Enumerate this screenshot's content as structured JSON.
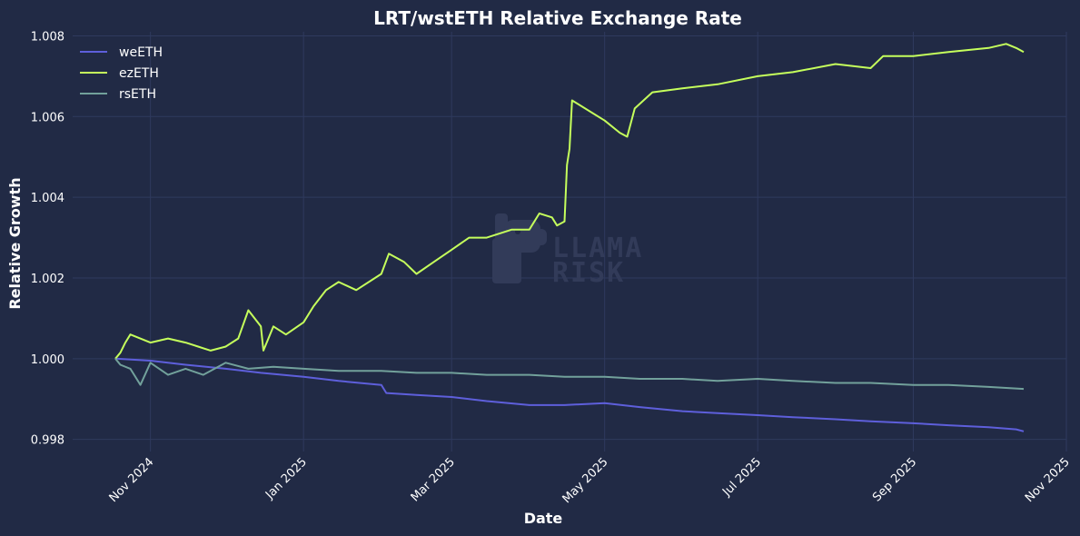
{
  "chart_data": {
    "type": "line",
    "title": "LRT/wstETH Relative Exchange Rate",
    "xlabel": "Date",
    "ylabel": "Relative Growth",
    "xlim": [
      "2024-10-01",
      "2025-11-01"
    ],
    "ylim": [
      0.9977,
      1.0081
    ],
    "x_ticks": [
      {
        "date": "2024-11-01",
        "label": "Nov 2024"
      },
      {
        "date": "2025-01-01",
        "label": "Jan 2025"
      },
      {
        "date": "2025-03-01",
        "label": "Mar 2025"
      },
      {
        "date": "2025-05-01",
        "label": "May 2025"
      },
      {
        "date": "2025-07-01",
        "label": "Jul 2025"
      },
      {
        "date": "2025-09-01",
        "label": "Sep 2025"
      },
      {
        "date": "2025-11-01",
        "label": "Nov 2025"
      }
    ],
    "y_ticks": [
      {
        "value": 0.998,
        "label": "0.998"
      },
      {
        "value": 1.0,
        "label": "1.000"
      },
      {
        "value": 1.002,
        "label": "1.002"
      },
      {
        "value": 1.004,
        "label": "1.004"
      },
      {
        "value": 1.006,
        "label": "1.006"
      },
      {
        "value": 1.008,
        "label": "1.008"
      }
    ],
    "grid": true,
    "legend_position": "top-left",
    "series": [
      {
        "name": "weETH",
        "color": "#5e5fdb",
        "points": [
          [
            "2024-10-18",
            1.0
          ],
          [
            "2024-11-01",
            0.99995
          ],
          [
            "2024-11-15",
            0.99985
          ],
          [
            "2024-12-01",
            0.99975
          ],
          [
            "2024-12-15",
            0.99965
          ],
          [
            "2025-01-01",
            0.99955
          ],
          [
            "2025-01-15",
            0.99945
          ],
          [
            "2025-02-01",
            0.99935
          ],
          [
            "2025-02-03",
            0.99915
          ],
          [
            "2025-02-15",
            0.9991
          ],
          [
            "2025-03-01",
            0.99905
          ],
          [
            "2025-03-15",
            0.99895
          ],
          [
            "2025-04-01",
            0.99885
          ],
          [
            "2025-04-15",
            0.99885
          ],
          [
            "2025-05-01",
            0.9989
          ],
          [
            "2025-05-15",
            0.9988
          ],
          [
            "2025-06-01",
            0.9987
          ],
          [
            "2025-06-15",
            0.99865
          ],
          [
            "2025-07-01",
            0.9986
          ],
          [
            "2025-07-15",
            0.99855
          ],
          [
            "2025-08-01",
            0.9985
          ],
          [
            "2025-08-15",
            0.99845
          ],
          [
            "2025-09-01",
            0.9984
          ],
          [
            "2025-09-15",
            0.99835
          ],
          [
            "2025-10-01",
            0.9983
          ],
          [
            "2025-10-12",
            0.99825
          ],
          [
            "2025-10-15",
            0.9982
          ]
        ]
      },
      {
        "name": "ezETH",
        "color": "#c5ff5c",
        "points": [
          [
            "2024-10-18",
            1.0
          ],
          [
            "2024-10-20",
            1.00015
          ],
          [
            "2024-10-22",
            1.0004
          ],
          [
            "2024-10-24",
            1.0006
          ],
          [
            "2024-11-01",
            1.0004
          ],
          [
            "2024-11-08",
            1.0005
          ],
          [
            "2024-11-15",
            1.0004
          ],
          [
            "2024-11-20",
            1.0003
          ],
          [
            "2024-11-25",
            1.0002
          ],
          [
            "2024-12-01",
            1.0003
          ],
          [
            "2024-12-06",
            1.0005
          ],
          [
            "2024-12-10",
            1.0012
          ],
          [
            "2024-12-15",
            1.0008
          ],
          [
            "2024-12-16",
            1.0002
          ],
          [
            "2024-12-20",
            1.0008
          ],
          [
            "2024-12-25",
            1.0006
          ],
          [
            "2025-01-01",
            1.0009
          ],
          [
            "2025-01-05",
            1.0013
          ],
          [
            "2025-01-10",
            1.0017
          ],
          [
            "2025-01-15",
            1.0019
          ],
          [
            "2025-01-22",
            1.0017
          ],
          [
            "2025-02-01",
            1.0021
          ],
          [
            "2025-02-04",
            1.0026
          ],
          [
            "2025-02-10",
            1.0024
          ],
          [
            "2025-02-15",
            1.0021
          ],
          [
            "2025-02-22",
            1.0024
          ],
          [
            "2025-03-01",
            1.0027
          ],
          [
            "2025-03-08",
            1.003
          ],
          [
            "2025-03-15",
            1.003
          ],
          [
            "2025-03-25",
            1.0032
          ],
          [
            "2025-04-01",
            1.0032
          ],
          [
            "2025-04-05",
            1.0036
          ],
          [
            "2025-04-10",
            1.0035
          ],
          [
            "2025-04-12",
            1.0033
          ],
          [
            "2025-04-15",
            1.0034
          ],
          [
            "2025-04-16",
            1.0048
          ],
          [
            "2025-04-17",
            1.0052
          ],
          [
            "2025-04-18",
            1.0064
          ],
          [
            "2025-05-01",
            1.0059
          ],
          [
            "2025-05-07",
            1.0056
          ],
          [
            "2025-05-10",
            1.0055
          ],
          [
            "2025-05-13",
            1.0062
          ],
          [
            "2025-05-20",
            1.0066
          ],
          [
            "2025-06-01",
            1.0067
          ],
          [
            "2025-06-15",
            1.0068
          ],
          [
            "2025-07-01",
            1.007
          ],
          [
            "2025-07-15",
            1.0071
          ],
          [
            "2025-08-01",
            1.0073
          ],
          [
            "2025-08-15",
            1.0072
          ],
          [
            "2025-08-20",
            1.0075
          ],
          [
            "2025-09-01",
            1.0075
          ],
          [
            "2025-09-15",
            1.0076
          ],
          [
            "2025-10-01",
            1.0077
          ],
          [
            "2025-10-08",
            1.0078
          ],
          [
            "2025-10-12",
            1.0077
          ],
          [
            "2025-10-15",
            1.0076
          ]
        ]
      },
      {
        "name": "rsETH",
        "color": "#72a19b",
        "points": [
          [
            "2024-10-18",
            1.0
          ],
          [
            "2024-10-20",
            0.99985
          ],
          [
            "2024-10-24",
            0.99975
          ],
          [
            "2024-10-28",
            0.99935
          ],
          [
            "2024-11-01",
            0.9999
          ],
          [
            "2024-11-08",
            0.9996
          ],
          [
            "2024-11-15",
            0.99975
          ],
          [
            "2024-11-22",
            0.9996
          ],
          [
            "2024-12-01",
            0.9999
          ],
          [
            "2024-12-10",
            0.99975
          ],
          [
            "2024-12-20",
            0.9998
          ],
          [
            "2025-01-01",
            0.99975
          ],
          [
            "2025-01-15",
            0.9997
          ],
          [
            "2025-02-01",
            0.9997
          ],
          [
            "2025-02-15",
            0.99965
          ],
          [
            "2025-03-01",
            0.99965
          ],
          [
            "2025-03-15",
            0.9996
          ],
          [
            "2025-04-01",
            0.9996
          ],
          [
            "2025-04-15",
            0.99955
          ],
          [
            "2025-05-01",
            0.99955
          ],
          [
            "2025-05-15",
            0.9995
          ],
          [
            "2025-06-01",
            0.9995
          ],
          [
            "2025-06-15",
            0.99945
          ],
          [
            "2025-07-01",
            0.9995
          ],
          [
            "2025-07-15",
            0.99945
          ],
          [
            "2025-08-01",
            0.9994
          ],
          [
            "2025-08-15",
            0.9994
          ],
          [
            "2025-09-01",
            0.99935
          ],
          [
            "2025-09-15",
            0.99935
          ],
          [
            "2025-10-01",
            0.9993
          ],
          [
            "2025-10-15",
            0.99925
          ]
        ]
      }
    ]
  },
  "watermark": {
    "line1": "LLAMA",
    "line2": "RISK"
  }
}
